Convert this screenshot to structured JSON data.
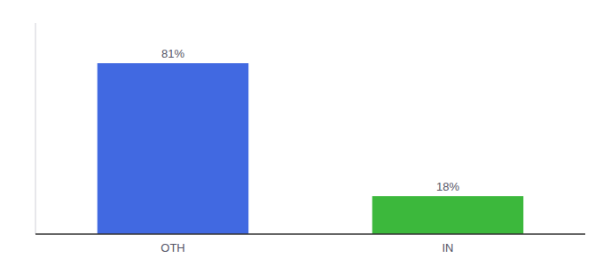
{
  "chart_data": {
    "type": "bar",
    "categories": [
      "OTH",
      "IN"
    ],
    "values": [
      81,
      18
    ],
    "value_labels": [
      "81%",
      "18%"
    ],
    "colors": [
      "#4169e1",
      "#3cb83c"
    ],
    "ylim": [
      0,
      100
    ],
    "yticks": [],
    "data_labels": true,
    "tick_labels": "x",
    "grid": false
  }
}
